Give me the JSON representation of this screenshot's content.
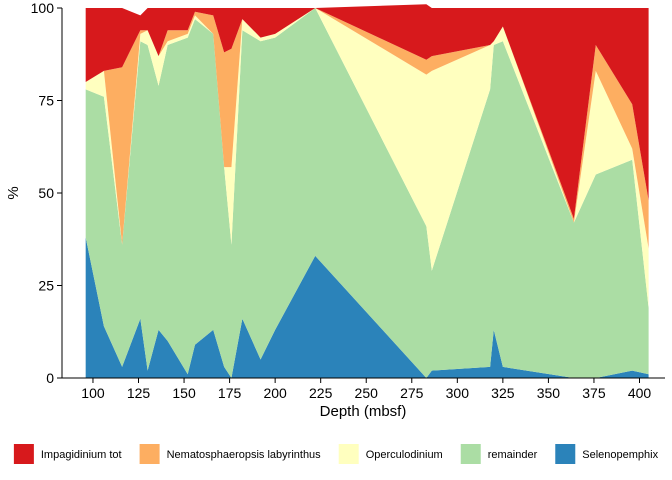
{
  "chart_data": {
    "type": "area",
    "stacked": true,
    "title": "",
    "xlabel": "Depth (mbsf)",
    "ylabel": "%",
    "xlim": [
      83,
      414
    ],
    "ylim": [
      0,
      100
    ],
    "xticks": [
      100,
      125,
      150,
      175,
      200,
      225,
      250,
      275,
      300,
      325,
      350,
      375,
      400
    ],
    "yticks": [
      0,
      25,
      50,
      75,
      100
    ],
    "grid": false,
    "legend_position": "bottom",
    "x": [
      96,
      106,
      116,
      126,
      130,
      136,
      141,
      152,
      156,
      166,
      172,
      176,
      182,
      192,
      200,
      222,
      283,
      286,
      318,
      320,
      325,
      364,
      376,
      396,
      405
    ],
    "series": [
      {
        "name": "Selenopemphix",
        "color": "#2b83ba",
        "values": [
          38,
          14,
          3,
          16,
          2,
          13,
          10,
          1,
          9,
          13,
          3,
          0,
          16,
          5,
          13,
          33,
          0,
          2,
          3,
          13,
          3,
          0,
          0,
          2,
          1
        ]
      },
      {
        "name": "remainder",
        "color": "#abdda4",
        "values": [
          40,
          62,
          33,
          75,
          88,
          66,
          80,
          91,
          88,
          80,
          54,
          36,
          78,
          86,
          79,
          67,
          41,
          27,
          75,
          77,
          88,
          42,
          55,
          57,
          18
        ]
      },
      {
        "name": "Operculodinium",
        "color": "#ffffbf",
        "values": [
          2,
          7,
          0,
          2,
          4,
          8,
          1,
          1,
          1,
          0,
          0,
          21,
          3,
          1,
          1,
          0,
          41,
          54,
          12,
          1,
          4,
          0,
          28,
          3,
          16
        ]
      },
      {
        "name": "Nematosphaeropsis labyrinthus",
        "color": "#fdae61",
        "values": [
          0,
          0,
          48,
          1,
          0,
          0,
          3,
          1,
          1,
          5,
          31,
          32,
          0,
          0,
          0,
          0,
          4,
          4,
          0,
          0,
          0,
          1,
          7,
          12,
          13
        ]
      },
      {
        "name": "Impagidinium tot",
        "color": "#d7191c",
        "values": [
          20,
          17,
          16,
          4,
          6,
          13,
          6,
          6,
          1,
          2,
          12,
          11,
          3,
          8,
          7,
          0,
          15,
          13,
          10,
          9,
          5,
          57,
          10,
          26,
          52
        ]
      }
    ],
    "legend_order": [
      "Impagidinium tot",
      "Nematosphaeropsis labyrinthus",
      "Operculodinium",
      "remainder",
      "Selenopemphix"
    ]
  }
}
